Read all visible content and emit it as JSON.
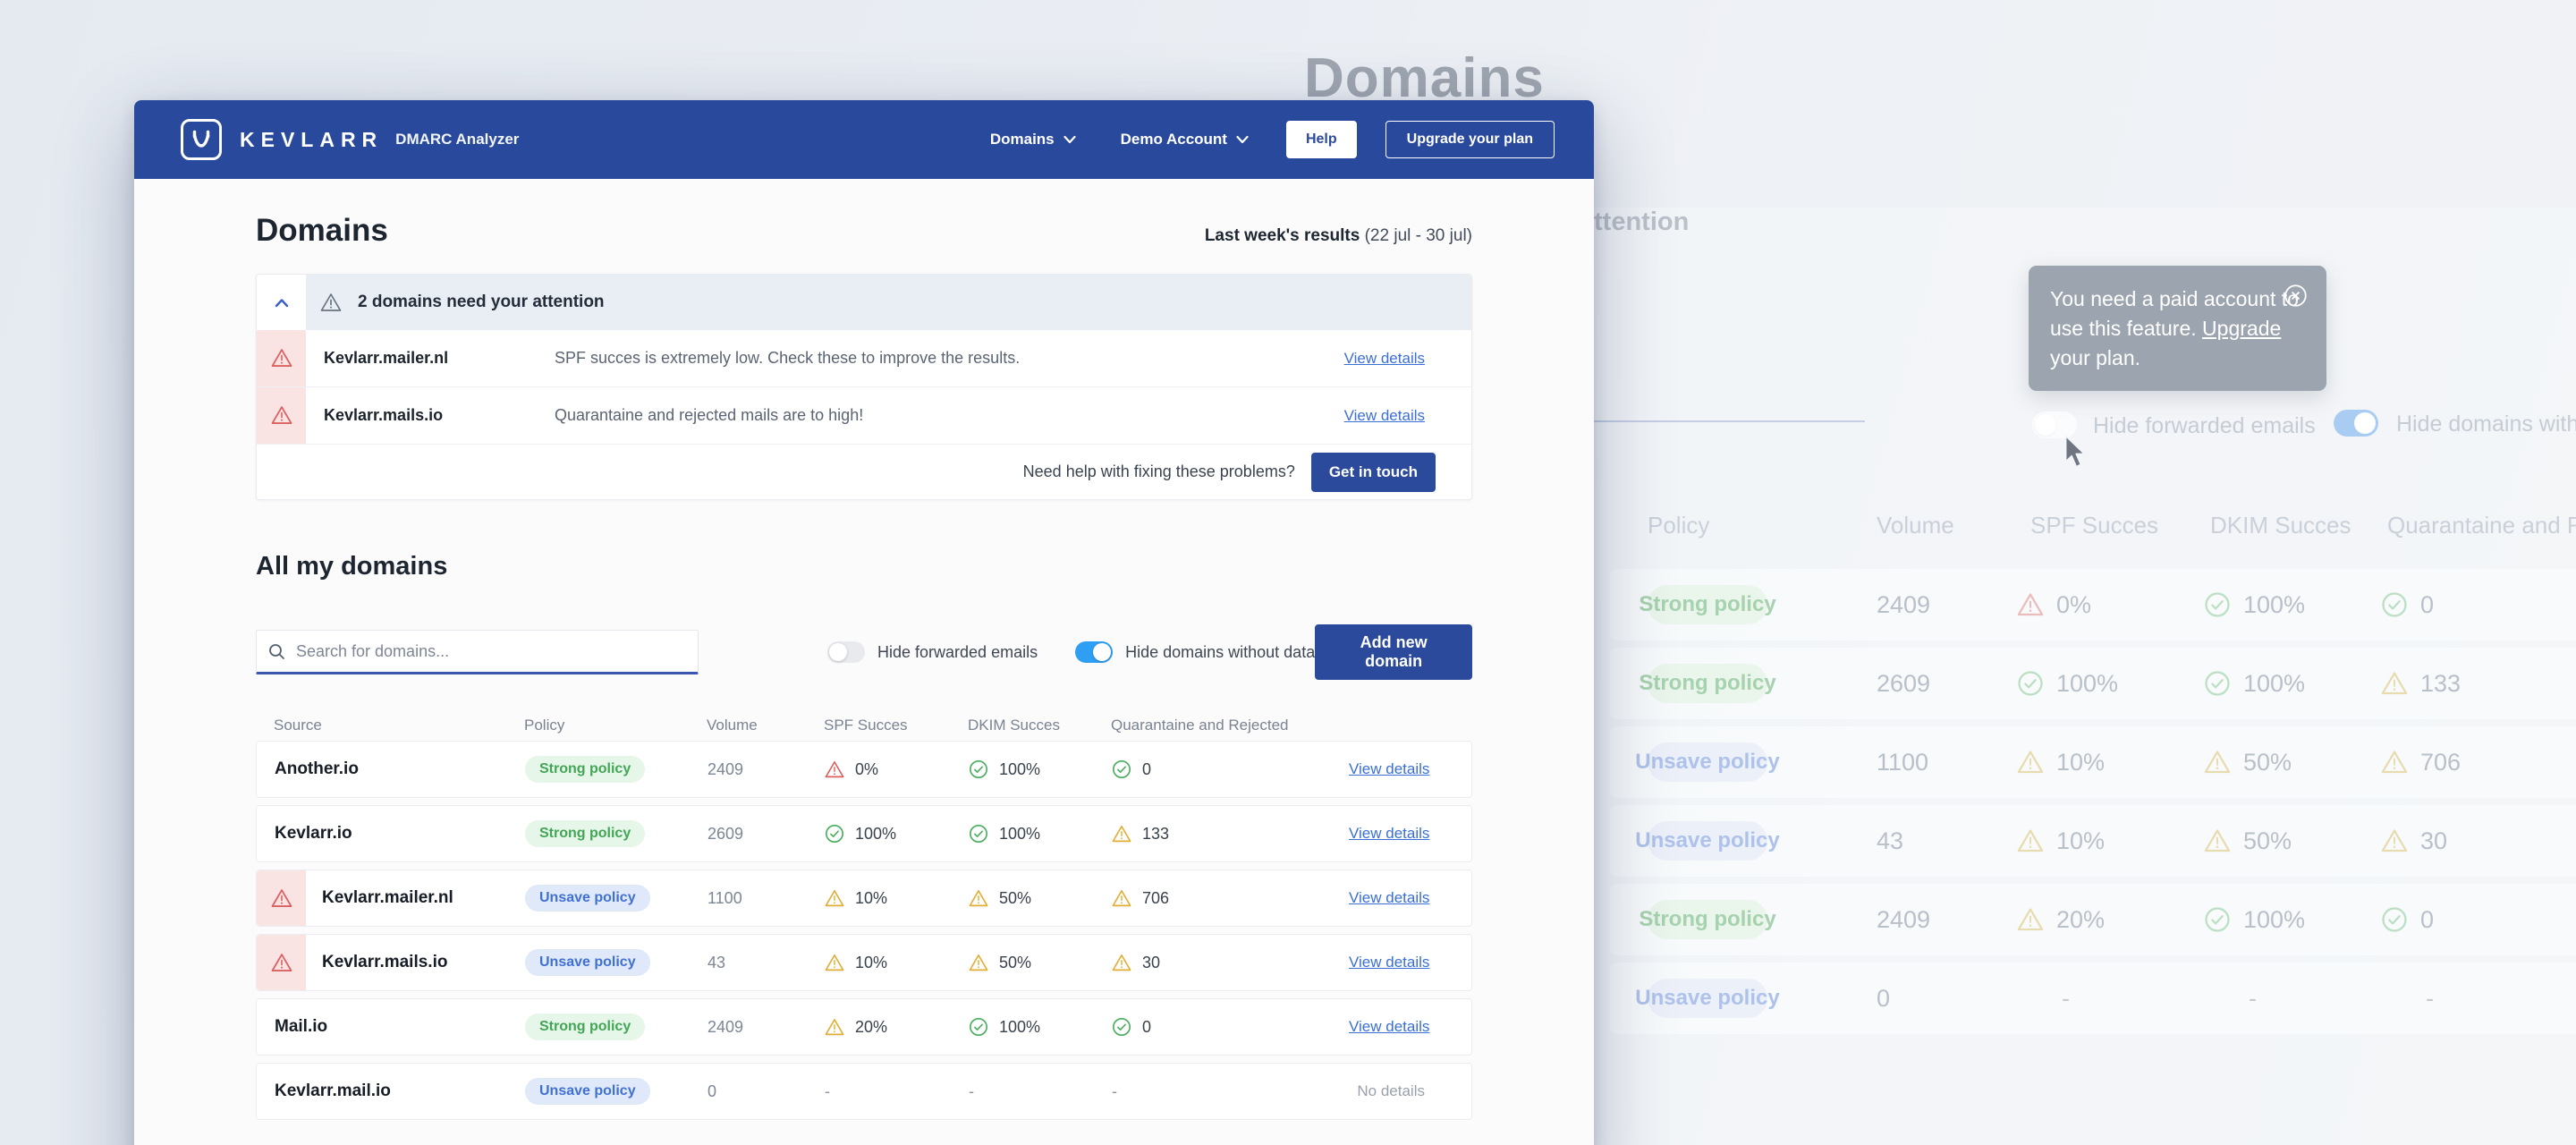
{
  "colors": {
    "brand_blue": "#29499c",
    "button_blue": "#2b4a9b",
    "link_blue": "#3b6fd4",
    "toggle_on_blue": "#2f9ff4",
    "success_green": "#49ae5d",
    "warning_yellow": "#dfae35",
    "danger_red": "#dc6060",
    "badge_strong_bg": "#e6f6e9",
    "badge_strong_text": "#43a556",
    "badge_unsafe_bg": "#dfe9fa",
    "badge_unsafe_text": "#4070d0"
  },
  "header": {
    "brand": "KEVLARR",
    "product": "DMARC Analyzer",
    "nav": [
      {
        "label": "Domains"
      },
      {
        "label": "Demo Account"
      }
    ],
    "help_label": "Help",
    "upgrade_label": "Upgrade your plan"
  },
  "page": {
    "title": "Domains",
    "results_bold": "Last week's results",
    "results_range": " (22 jul - 30 jul)"
  },
  "alerts": {
    "title": "2 domains need your attention",
    "items": [
      {
        "domain": "Kevlarr.mailer.nl",
        "message": "SPF succes is extremely low. Check these to improve the results.",
        "action": "View details"
      },
      {
        "domain": "Kevlarr.mails.io",
        "message": "Quarantaine and rejected mails are to high!",
        "action": "View details"
      }
    ],
    "footer_text": "Need help with fixing these problems?",
    "footer_action": "Get in touch"
  },
  "domains_section": {
    "title": "All my domains",
    "search_placeholder": "Search for domains...",
    "toggles": [
      {
        "label": "Hide forwarded emails",
        "on": false
      },
      {
        "label": "Hide domains without data",
        "on": true
      }
    ],
    "add_button": "Add new domain"
  },
  "table": {
    "columns": [
      "Source",
      "Policy",
      "Volume",
      "SPF Succes",
      "DKIM Succes",
      "Quarantaine and Rejected"
    ],
    "rows": [
      {
        "source": "Another.io",
        "alert": false,
        "policy": {
          "label": "Strong policy",
          "type": "strong"
        },
        "volume": "2409",
        "spf": {
          "state": "danger",
          "value": "0%"
        },
        "dkim": {
          "state": "success",
          "value": "100%"
        },
        "quarantine": {
          "state": "success",
          "value": "0"
        },
        "action": {
          "label": "View details",
          "link": true
        }
      },
      {
        "source": "Kevlarr.io",
        "alert": false,
        "policy": {
          "label": "Strong policy",
          "type": "strong"
        },
        "volume": "2609",
        "spf": {
          "state": "success",
          "value": "100%"
        },
        "dkim": {
          "state": "success",
          "value": "100%"
        },
        "quarantine": {
          "state": "warning",
          "value": "133"
        },
        "action": {
          "label": "View details",
          "link": true
        }
      },
      {
        "source": "Kevlarr.mailer.nl",
        "alert": true,
        "policy": {
          "label": "Unsave policy",
          "type": "unsafe"
        },
        "volume": "1100",
        "spf": {
          "state": "warning",
          "value": "10%"
        },
        "dkim": {
          "state": "warning",
          "value": "50%"
        },
        "quarantine": {
          "state": "warning",
          "value": "706"
        },
        "action": {
          "label": "View details",
          "link": true
        }
      },
      {
        "source": "Kevlarr.mails.io",
        "alert": true,
        "policy": {
          "label": "Unsave policy",
          "type": "unsafe"
        },
        "volume": "43",
        "spf": {
          "state": "warning",
          "value": "10%"
        },
        "dkim": {
          "state": "warning",
          "value": "50%"
        },
        "quarantine": {
          "state": "warning",
          "value": "30"
        },
        "action": {
          "label": "View details",
          "link": true
        }
      },
      {
        "source": "Mail.io",
        "alert": false,
        "policy": {
          "label": "Strong policy",
          "type": "strong"
        },
        "volume": "2409",
        "spf": {
          "state": "warning",
          "value": "20%"
        },
        "dkim": {
          "state": "success",
          "value": "100%"
        },
        "quarantine": {
          "state": "success",
          "value": "0"
        },
        "action": {
          "label": "View details",
          "link": true
        }
      },
      {
        "source": "Kevlarr.mail.io",
        "alert": false,
        "policy": {
          "label": "Unsave policy",
          "type": "unsafe"
        },
        "volume": "0",
        "spf": {
          "state": "none",
          "value": "-"
        },
        "dkim": {
          "state": "none",
          "value": "-"
        },
        "quarantine": {
          "state": "none",
          "value": "-"
        },
        "action": {
          "label": "No details",
          "link": false
        }
      }
    ]
  },
  "background": {
    "title": "Domains",
    "attention_fragment": "ttention",
    "tooltip": {
      "text_before": "You need a paid account to use this feature. ",
      "link": "Upgrade",
      "text_after": " your plan."
    },
    "toggles": [
      {
        "label": "Hide forwarded emails",
        "on": false
      },
      {
        "label": "Hide domains without data",
        "on": true
      }
    ],
    "table_columns": [
      "Policy",
      "Volume",
      "SPF Succes",
      "DKIM Succes",
      "Quarantaine and Rejected"
    ]
  }
}
